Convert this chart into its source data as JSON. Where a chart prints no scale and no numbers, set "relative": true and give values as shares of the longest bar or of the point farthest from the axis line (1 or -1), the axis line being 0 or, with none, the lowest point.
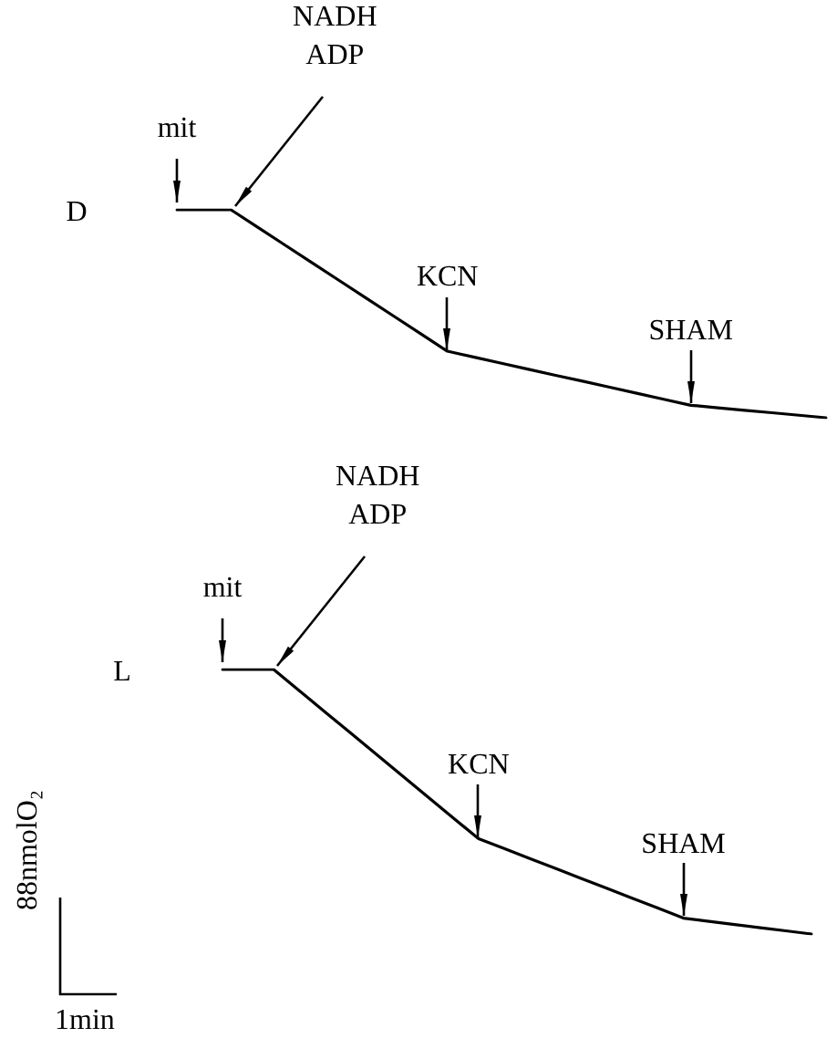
{
  "chart_data": [
    {
      "type": "line",
      "title": "D",
      "relative": true,
      "categories": [
        null,
        null,
        null,
        null,
        null,
        null,
        null,
        null,
        null,
        null,
        null,
        null,
        null,
        null,
        null,
        null,
        null,
        null,
        null,
        null,
        null,
        null,
        null,
        null,
        null
      ],
      "series": [
        {
          "color": "#000000",
          "values": [
            1,
            1,
            1,
            0.915,
            0.83,
            0.745,
            0.66,
            0.575,
            0.49,
            0.405,
            0.32,
            0.291,
            0.262,
            0.233,
            0.204,
            0.176,
            0.147,
            0.118,
            0.089,
            0.06,
            0.048,
            0.036,
            0.024,
            0.012,
            0
          ]
        }
      ],
      "annotations": [
        "mit",
        "NADH\nADP",
        "KCN",
        "SHAM"
      ]
    },
    {
      "type": "line",
      "title": "L",
      "relative": true,
      "categories": [
        null,
        null,
        null,
        null,
        null,
        null,
        null,
        null,
        null,
        null,
        null,
        null,
        null,
        null,
        null,
        null,
        null,
        null,
        null,
        null,
        null,
        null,
        null,
        null
      ],
      "series": [
        {
          "color": "#000000",
          "values": [
            1,
            1,
            1,
            0.92,
            0.84,
            0.76,
            0.68,
            0.6,
            0.52,
            0.44,
            0.36,
            0.323,
            0.285,
            0.248,
            0.21,
            0.173,
            0.135,
            0.098,
            0.06,
            0.048,
            0.036,
            0.024,
            0.012,
            0
          ]
        }
      ],
      "annotations": [
        "mit",
        "NADH\nADP",
        "KCN",
        "SHAM",
        "88nmolO₂",
        "1min"
      ]
    }
  ]
}
